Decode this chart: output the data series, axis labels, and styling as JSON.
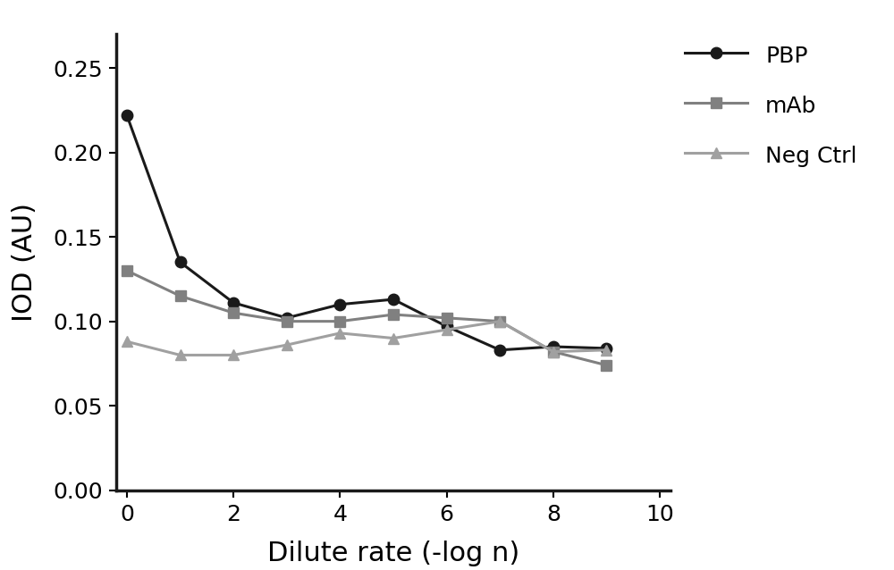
{
  "x": [
    0,
    1,
    2,
    3,
    4,
    5,
    6,
    7,
    8,
    9
  ],
  "PBP": [
    0.222,
    0.135,
    0.111,
    0.102,
    0.11,
    0.113,
    0.097,
    0.083,
    0.085,
    0.084
  ],
  "mAb": [
    0.13,
    0.115,
    0.105,
    0.1,
    0.1,
    0.104,
    0.102,
    0.1,
    0.082,
    0.074
  ],
  "NegCtrl": [
    0.088,
    0.08,
    0.08,
    0.086,
    0.093,
    0.09,
    0.095,
    0.1,
    0.082,
    0.083
  ],
  "PBP_color": "#1a1a1a",
  "mAb_color": "#808080",
  "NegCtrl_color": "#a0a0a0",
  "xlabel": "Dilute rate (-log n)",
  "ylabel": "IOD (AU)",
  "xlim": [
    -0.2,
    10.2
  ],
  "ylim": [
    0.0,
    0.27
  ],
  "yticks": [
    0.0,
    0.05,
    0.1,
    0.15,
    0.2,
    0.25
  ],
  "xticks": [
    0,
    2,
    4,
    6,
    8,
    10
  ],
  "legend_labels": [
    "PBP",
    "mAb",
    "Neg Ctrl"
  ],
  "background_color": "#ffffff",
  "linewidth": 2.2,
  "markersize": 9,
  "tick_labelsize": 18,
  "axis_labelsize": 22,
  "legend_fontsize": 18
}
